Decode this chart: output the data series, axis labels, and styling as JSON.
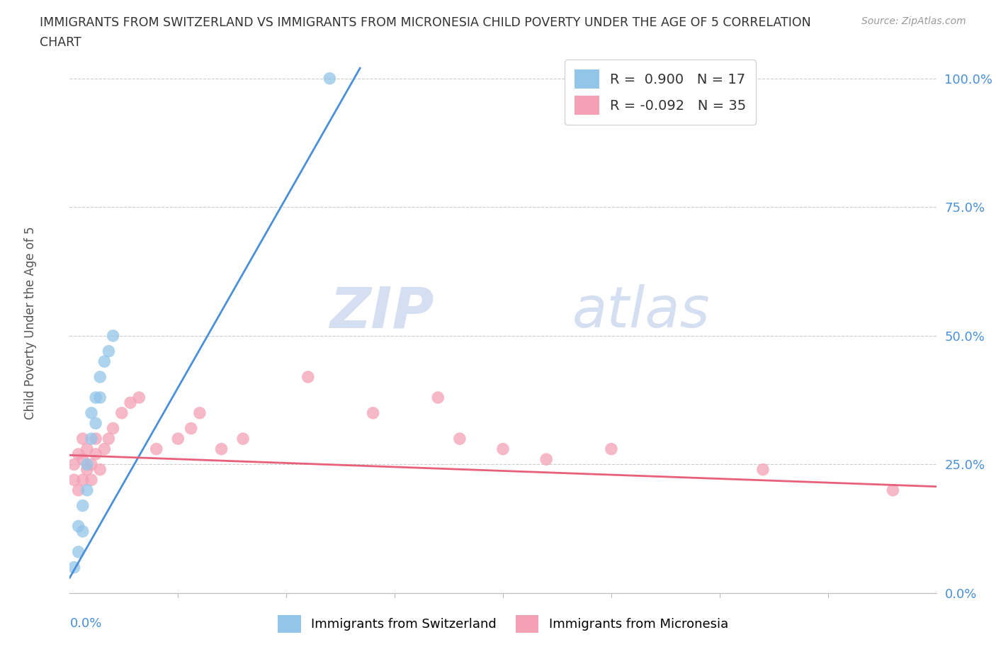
{
  "title_line1": "IMMIGRANTS FROM SWITZERLAND VS IMMIGRANTS FROM MICRONESIA CHILD POVERTY UNDER THE AGE OF 5 CORRELATION",
  "title_line2": "CHART",
  "source_text": "Source: ZipAtlas.com",
  "ylabel": "Child Poverty Under the Age of 5",
  "ytick_labels": [
    "0.0%",
    "25.0%",
    "50.0%",
    "75.0%",
    "100.0%"
  ],
  "ytick_values": [
    0.0,
    0.25,
    0.5,
    0.75,
    1.0
  ],
  "xmin": 0.0,
  "xmax": 0.2,
  "ymin": 0.0,
  "ymax": 1.05,
  "r_switzerland": 0.9,
  "n_switzerland": 17,
  "r_micronesia": -0.092,
  "n_micronesia": 35,
  "color_switzerland": "#92C5E8",
  "color_micronesia": "#F4A0B5",
  "trendline_color_switzerland": "#4A90D9",
  "trendline_color_micronesia": "#E8607A",
  "legend_label_switzerland": "Immigrants from Switzerland",
  "legend_label_micronesia": "Immigrants from Micronesia",
  "watermark_line1": "ZIP",
  "watermark_line2": "atlas",
  "background_color": "#FFFFFF",
  "grid_color": "#CCCCCC",
  "title_color": "#333333",
  "axis_label_color": "#4A90D9",
  "ylabel_color": "#555555",
  "switzerland_x": [
    0.001,
    0.002,
    0.002,
    0.003,
    0.003,
    0.004,
    0.004,
    0.005,
    0.005,
    0.006,
    0.006,
    0.007,
    0.007,
    0.008,
    0.009,
    0.01,
    0.06
  ],
  "switzerland_y": [
    0.05,
    0.08,
    0.13,
    0.12,
    0.17,
    0.2,
    0.25,
    0.3,
    0.35,
    0.33,
    0.38,
    0.38,
    0.42,
    0.45,
    0.47,
    0.5,
    1.0
  ],
  "micronesia_x": [
    0.001,
    0.001,
    0.002,
    0.002,
    0.003,
    0.003,
    0.003,
    0.004,
    0.004,
    0.005,
    0.005,
    0.006,
    0.006,
    0.007,
    0.008,
    0.009,
    0.01,
    0.012,
    0.014,
    0.016,
    0.02,
    0.025,
    0.028,
    0.03,
    0.035,
    0.04,
    0.055,
    0.07,
    0.085,
    0.09,
    0.1,
    0.11,
    0.125,
    0.16,
    0.19
  ],
  "micronesia_y": [
    0.22,
    0.25,
    0.2,
    0.27,
    0.22,
    0.26,
    0.3,
    0.24,
    0.28,
    0.22,
    0.25,
    0.27,
    0.3,
    0.24,
    0.28,
    0.3,
    0.32,
    0.35,
    0.37,
    0.38,
    0.28,
    0.3,
    0.32,
    0.35,
    0.28,
    0.3,
    0.42,
    0.35,
    0.38,
    0.3,
    0.28,
    0.26,
    0.28,
    0.24,
    0.2
  ]
}
